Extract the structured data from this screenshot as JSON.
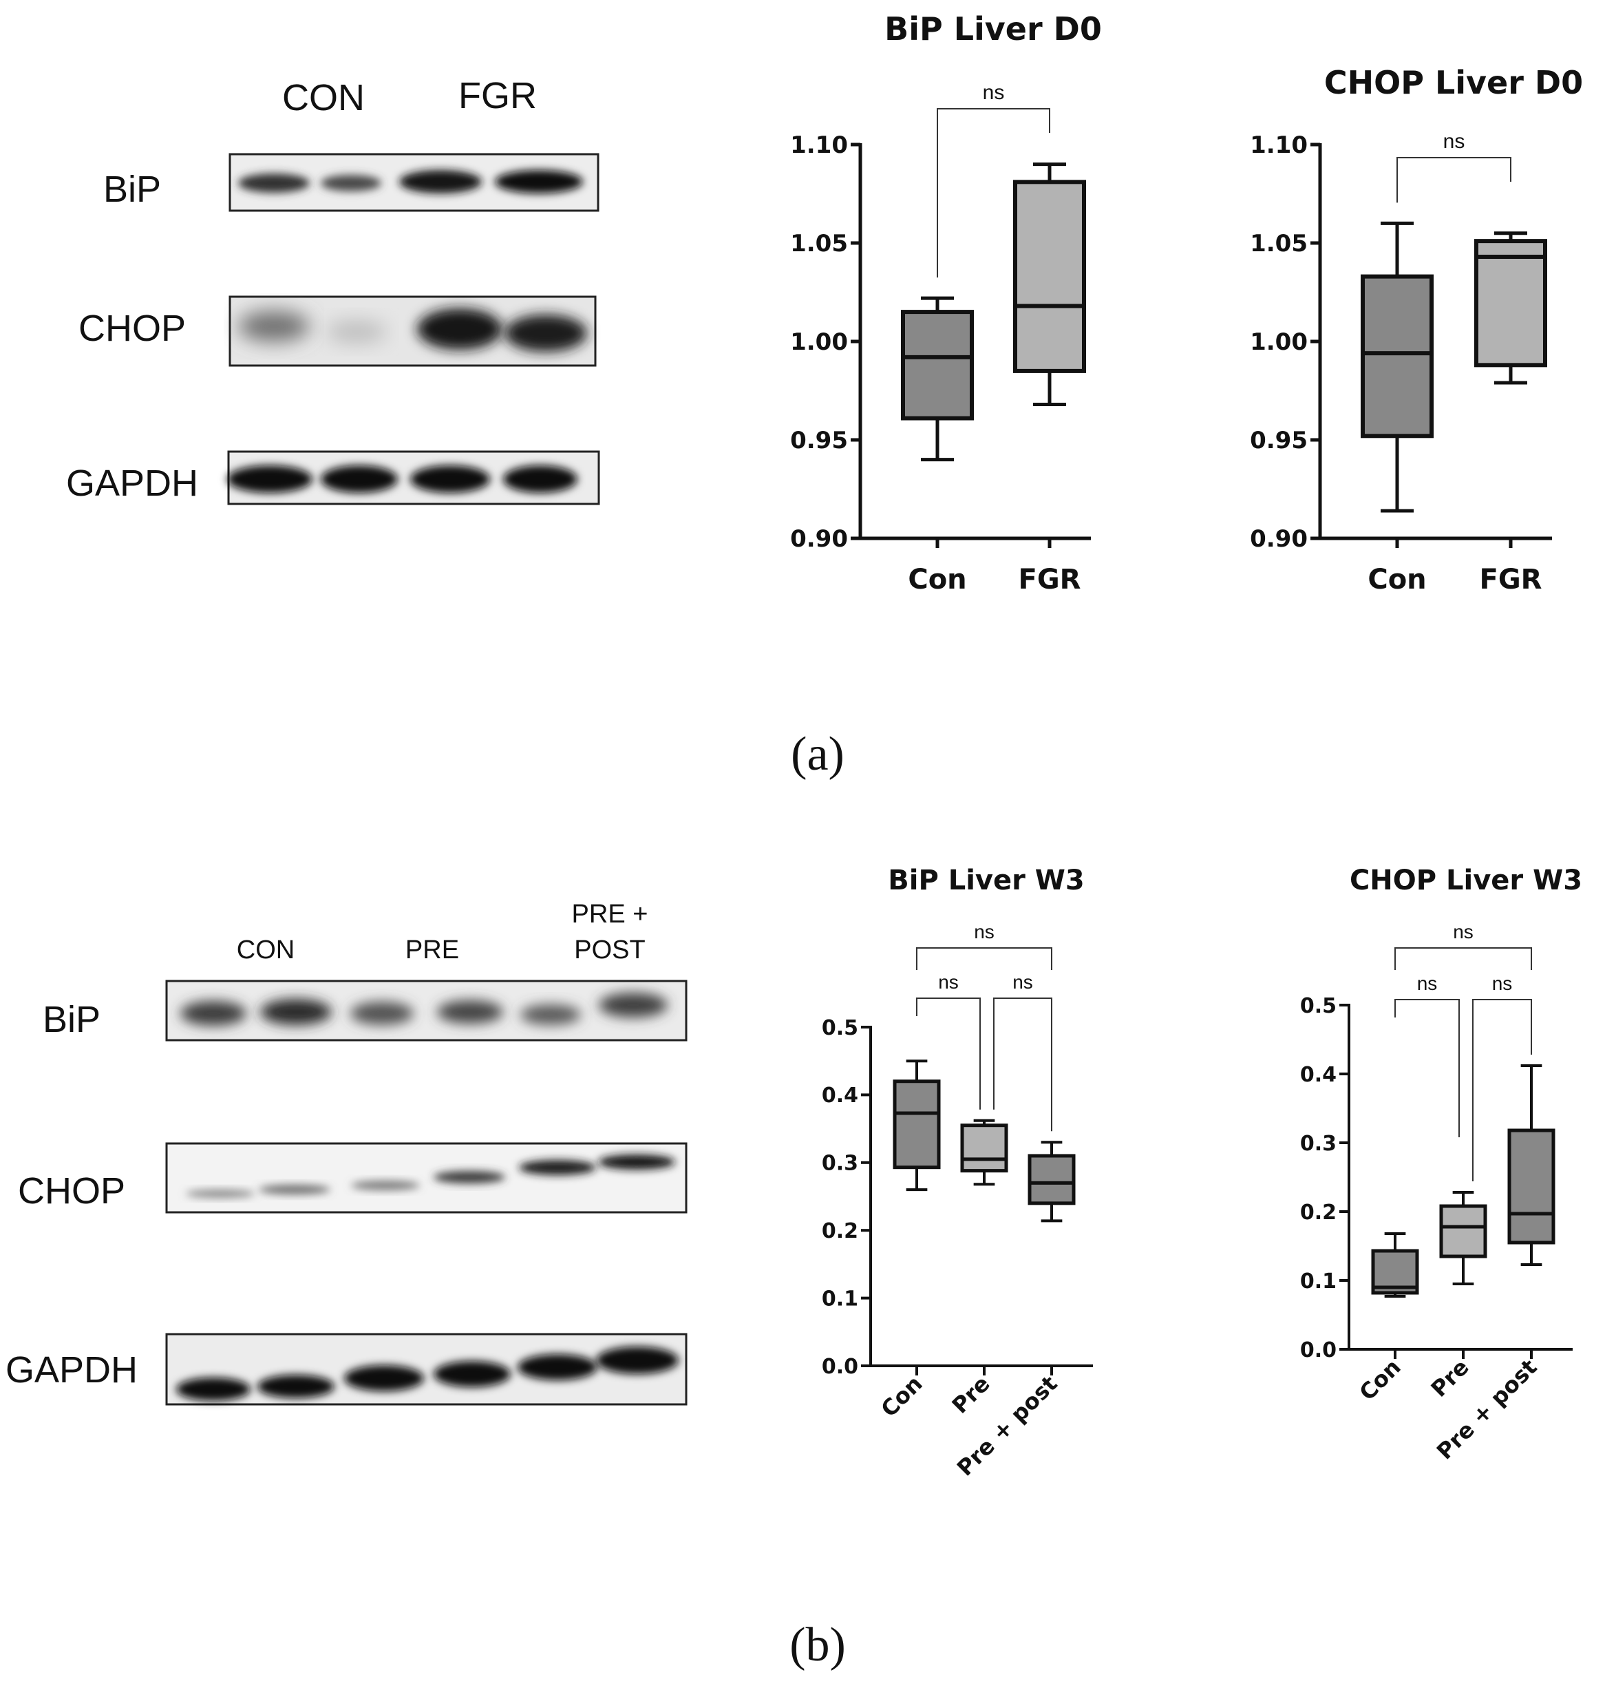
{
  "figure": {
    "panel_a_label": "(a)",
    "panel_b_label": "(b)"
  },
  "blots": {
    "a": {
      "groups": [
        "CON",
        "FGR"
      ],
      "rows": [
        "BiP",
        "CHOP",
        "GAPDH"
      ]
    },
    "b": {
      "groups": [
        "CON",
        "PRE",
        "PRE +",
        "POST"
      ],
      "rows": [
        "BiP",
        "CHOP",
        "GAPDH"
      ]
    }
  },
  "chart_data": [
    {
      "id": "bip-d0",
      "type": "box",
      "title": "BiP Liver D0",
      "categories": [
        "Con",
        "FGR"
      ],
      "ylim": [
        0.9,
        1.1
      ],
      "ytick_labels": [
        "0.90",
        "0.95",
        "1.00",
        "1.05",
        "1.10"
      ],
      "box_colors": [
        "#888888",
        "#b3b3b3"
      ],
      "boxes": [
        {
          "min": 0.94,
          "q1": 0.961,
          "median": 0.992,
          "q3": 1.015,
          "max": 1.022
        },
        {
          "min": 0.968,
          "q1": 0.985,
          "median": 1.018,
          "q3": 1.081,
          "max": 1.09
        }
      ],
      "comparisons": [
        {
          "from": 0,
          "to": 1,
          "label": "ns"
        }
      ]
    },
    {
      "id": "chop-d0",
      "type": "box",
      "title": "CHOP Liver D0",
      "categories": [
        "Con",
        "FGR"
      ],
      "ylim": [
        0.9,
        1.1
      ],
      "ytick_labels": [
        "0.90",
        "0.95",
        "1.00",
        "1.05",
        "1.10"
      ],
      "box_colors": [
        "#888888",
        "#b3b3b3"
      ],
      "boxes": [
        {
          "min": 0.914,
          "q1": 0.952,
          "median": 0.994,
          "q3": 1.033,
          "max": 1.06
        },
        {
          "min": 0.979,
          "q1": 0.988,
          "median": 1.043,
          "q3": 1.051,
          "max": 1.055
        }
      ],
      "comparisons": [
        {
          "from": 0,
          "to": 1,
          "label": "ns"
        }
      ]
    },
    {
      "id": "bip-w3",
      "type": "box",
      "title": "BiP Liver W3",
      "categories": [
        "Con",
        "Pre",
        "Pre + post"
      ],
      "ylim": [
        0.0,
        0.5
      ],
      "ytick_labels": [
        "0.0",
        "0.1",
        "0.2",
        "0.3",
        "0.4",
        "0.5"
      ],
      "box_colors": [
        "#888888",
        "#b3b3b3",
        "#888888"
      ],
      "boxes": [
        {
          "min": 0.26,
          "q1": 0.293,
          "median": 0.373,
          "q3": 0.42,
          "max": 0.45
        },
        {
          "min": 0.268,
          "q1": 0.288,
          "median": 0.305,
          "q3": 0.355,
          "max": 0.362
        },
        {
          "min": 0.214,
          "q1": 0.24,
          "median": 0.27,
          "q3": 0.31,
          "max": 0.33
        }
      ],
      "comparisons": [
        {
          "from": 0,
          "to": 2,
          "label": "ns",
          "level": 2
        },
        {
          "from": 0,
          "to": 1,
          "label": "ns",
          "level": 1
        },
        {
          "from": 1,
          "to": 2,
          "label": "ns",
          "level": 1
        }
      ]
    },
    {
      "id": "chop-w3",
      "type": "box",
      "title": "CHOP Liver W3",
      "categories": [
        "Con",
        "Pre",
        "Pre + post"
      ],
      "ylim": [
        0.0,
        0.5
      ],
      "ytick_labels": [
        "0.0",
        "0.1",
        "0.2",
        "0.3",
        "0.4",
        "0.5"
      ],
      "box_colors": [
        "#888888",
        "#b3b3b3",
        "#888888"
      ],
      "boxes": [
        {
          "min": 0.077,
          "q1": 0.082,
          "median": 0.09,
          "q3": 0.143,
          "max": 0.168
        },
        {
          "min": 0.095,
          "q1": 0.135,
          "median": 0.178,
          "q3": 0.208,
          "max": 0.228
        },
        {
          "min": 0.123,
          "q1": 0.155,
          "median": 0.197,
          "q3": 0.318,
          "max": 0.412
        }
      ],
      "comparisons": [
        {
          "from": 0,
          "to": 2,
          "label": "ns",
          "level": 2
        },
        {
          "from": 0,
          "to": 1,
          "label": "ns",
          "level": 1
        },
        {
          "from": 1,
          "to": 2,
          "label": "ns",
          "level": 1
        }
      ]
    }
  ]
}
